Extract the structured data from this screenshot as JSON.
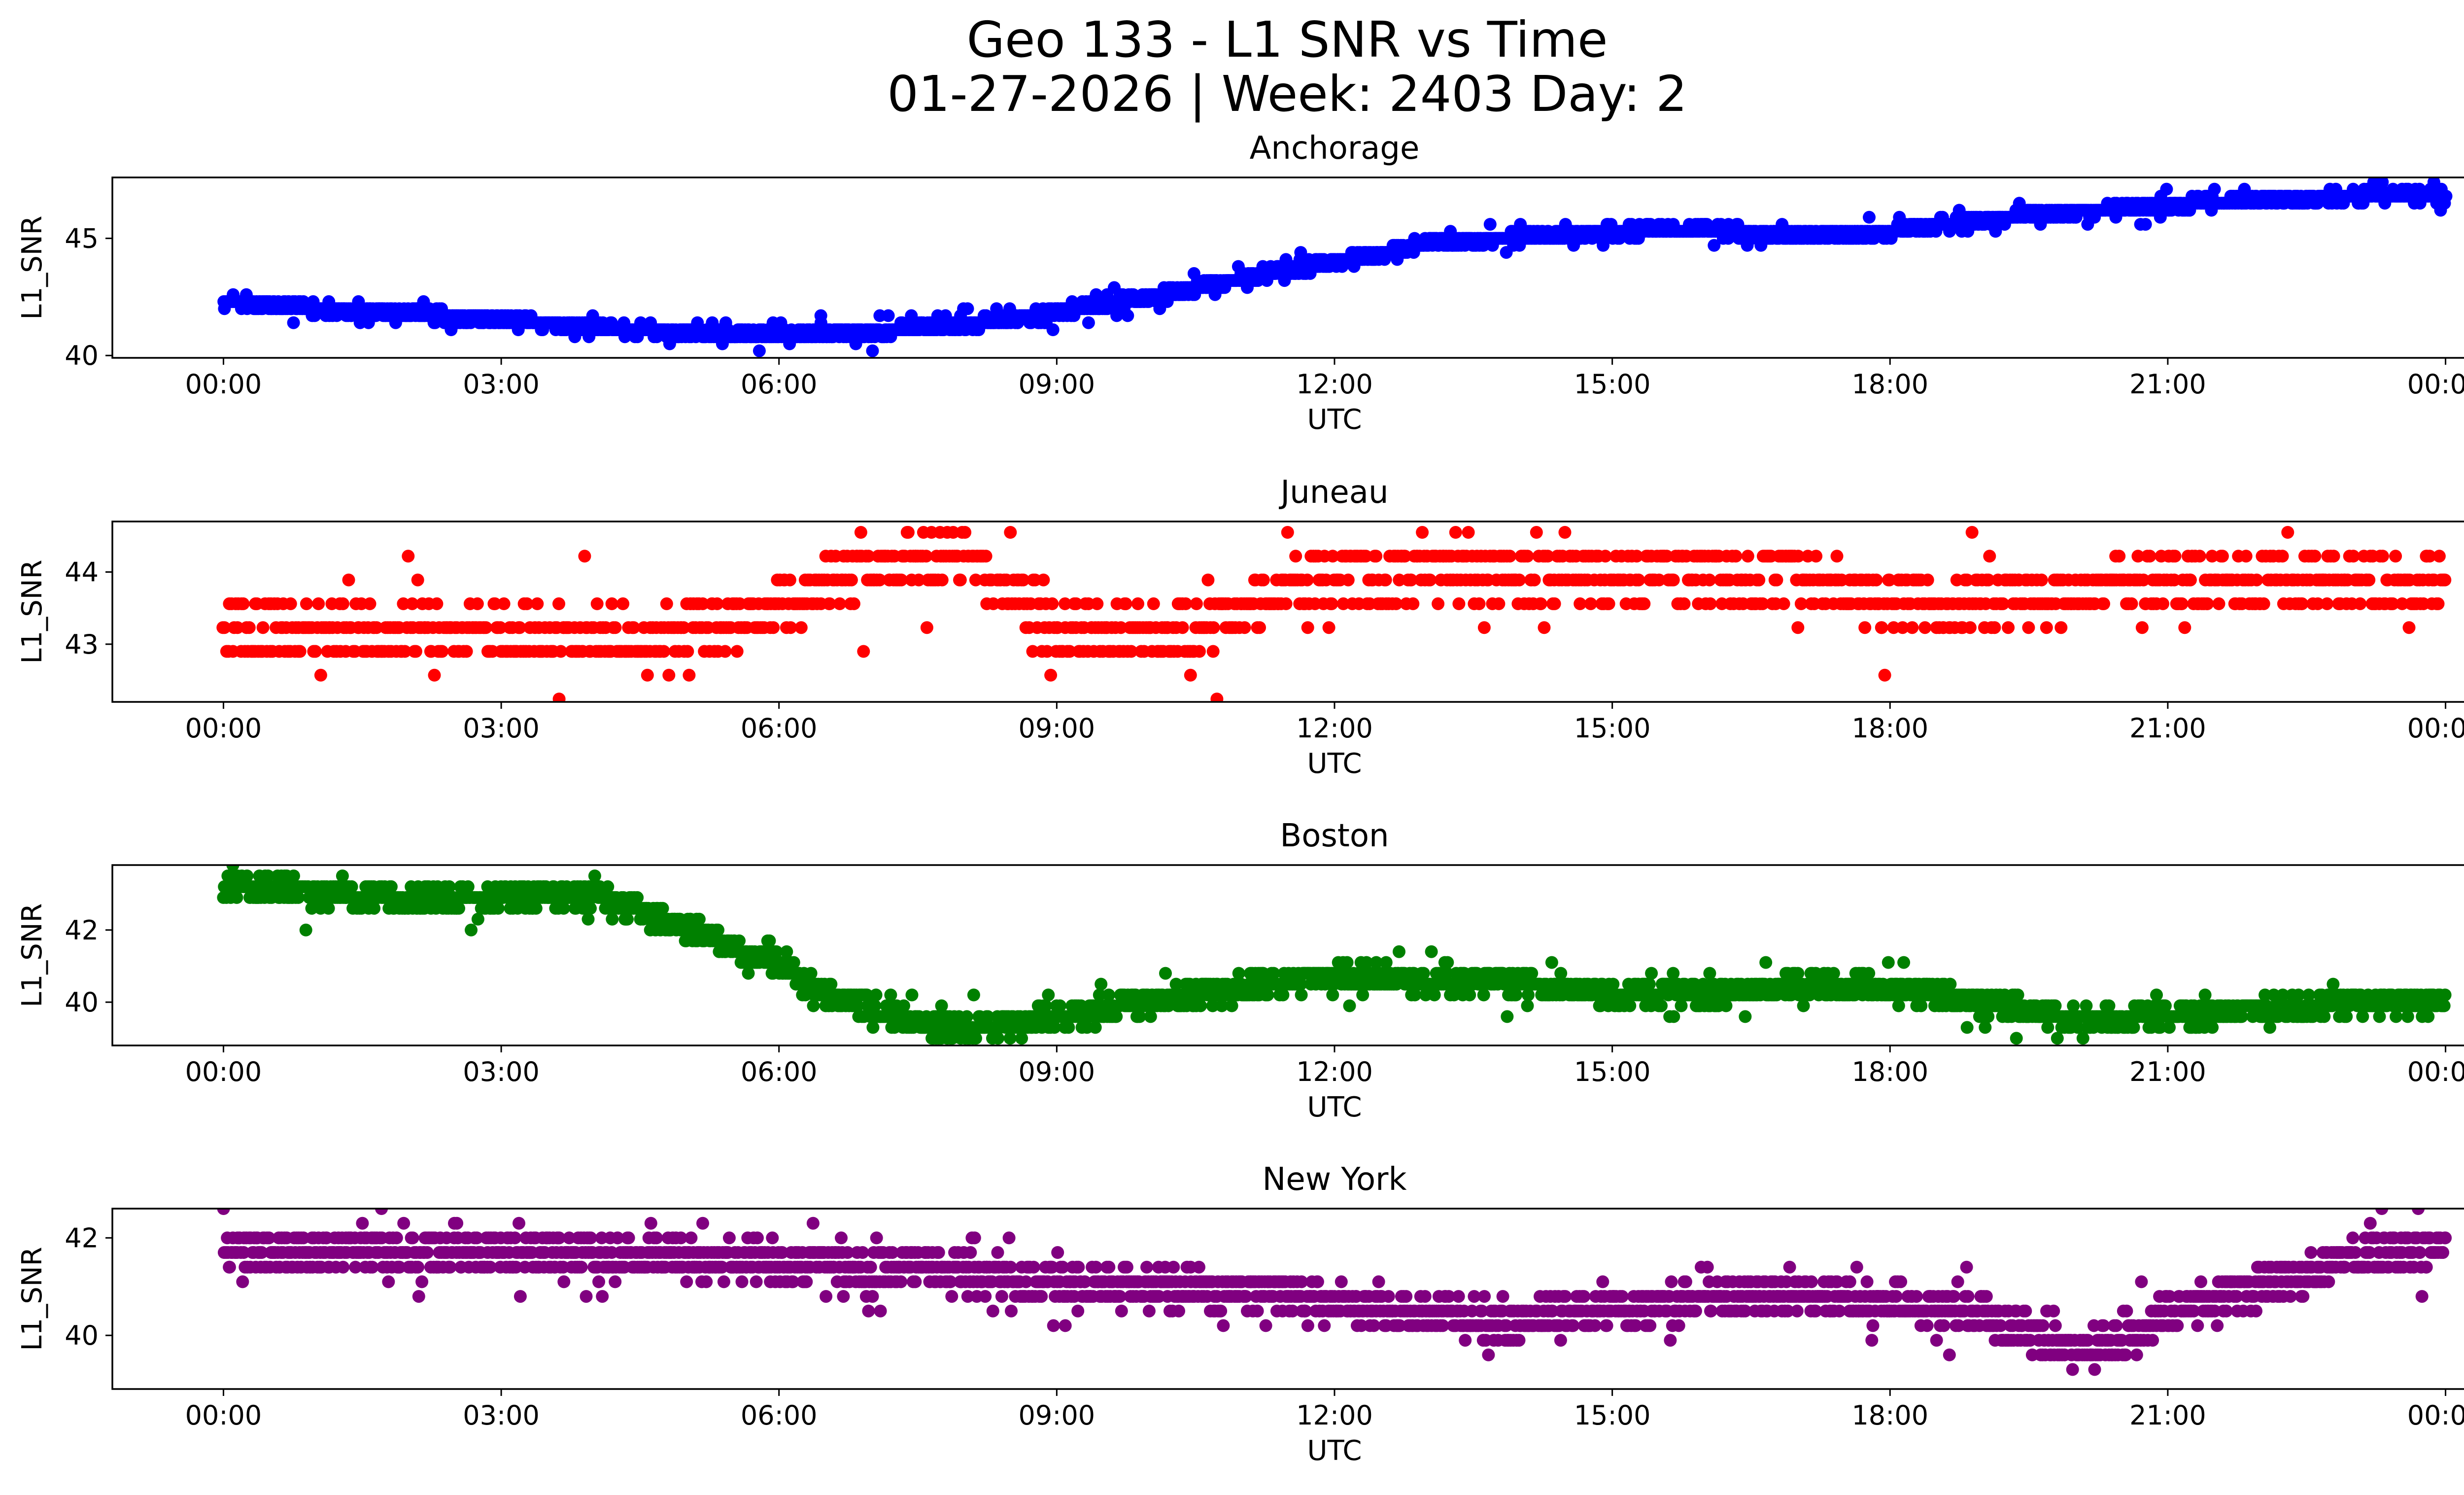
{
  "figure": {
    "title_line1": "Geo 133 - L1 SNR vs Time",
    "title_line2": "01-27-2026 | Week: 2403 Day: 2"
  },
  "chart_data": [
    {
      "type": "scatter",
      "title": "Anchorage",
      "xlabel": "UTC",
      "ylabel": "L1_SNR",
      "color": "#0000ff",
      "xlim": [
        -1.2,
        25.2
      ],
      "ylim": [
        39.9,
        47.6
      ],
      "yticks": [
        40,
        45
      ],
      "xticks": [
        0,
        3,
        6,
        9,
        12,
        15,
        18,
        21,
        24
      ],
      "xtick_labels": [
        "00:00",
        "03:00",
        "06:00",
        "09:00",
        "12:00",
        "15:00",
        "18:00",
        "21:00",
        "00:00"
      ],
      "series": [
        {
          "name": "Anchorage",
          "trend": [
            [
              0,
              42.3
            ],
            [
              1,
              42.0
            ],
            [
              2,
              41.8
            ],
            [
              3,
              41.5
            ],
            [
              4,
              41.2
            ],
            [
              5,
              41.0
            ],
            [
              6,
              40.9
            ],
            [
              7,
              41.0
            ],
            [
              8,
              41.3
            ],
            [
              9,
              41.8
            ],
            [
              10,
              42.5
            ],
            [
              11,
              43.3
            ],
            [
              12,
              44.0
            ],
            [
              13,
              44.8
            ],
            [
              14,
              45.0
            ],
            [
              15,
              45.3
            ],
            [
              16,
              45.4
            ],
            [
              17,
              45.1
            ],
            [
              18,
              45.3
            ],
            [
              19,
              45.8
            ],
            [
              20,
              46.1
            ],
            [
              21,
              46.4
            ],
            [
              22,
              46.7
            ],
            [
              23,
              46.8
            ],
            [
              24,
              46.8
            ]
          ],
          "band": [
            0.2,
            0.2
          ],
          "quant": 0.3,
          "outlier_rate": 0.06,
          "outlier_amp": 0.4,
          "density": 8
        }
      ]
    },
    {
      "type": "scatter",
      "title": "Juneau",
      "xlabel": "UTC",
      "ylabel": "L1_SNR",
      "color": "#ff0000",
      "xlim": [
        -1.2,
        25.2
      ],
      "ylim": [
        42.2,
        44.7
      ],
      "yticks": [
        43,
        44
      ],
      "xticks": [
        0,
        3,
        6,
        9,
        12,
        15,
        18,
        21,
        24
      ],
      "xtick_labels": [
        "00:00",
        "03:00",
        "06:00",
        "09:00",
        "12:00",
        "15:00",
        "18:00",
        "21:00",
        "00:00"
      ],
      "series": [
        {
          "name": "Juneau",
          "trend": [
            [
              0,
              43.2
            ],
            [
              3,
              43.1
            ],
            [
              5,
              43.1
            ],
            [
              6,
              43.5
            ],
            [
              6.5,
              43.9
            ],
            [
              7,
              44.1
            ],
            [
              8,
              44.2
            ],
            [
              8.5,
              43.8
            ],
            [
              9,
              43.2
            ],
            [
              10,
              43.1
            ],
            [
              10.5,
              43.2
            ],
            [
              11,
              43.5
            ],
            [
              11.5,
              43.7
            ],
            [
              12,
              43.95
            ],
            [
              15,
              43.95
            ],
            [
              17,
              43.9
            ],
            [
              18,
              43.6
            ],
            [
              19,
              43.6
            ],
            [
              20,
              43.7
            ],
            [
              21,
              43.9
            ],
            [
              24,
              43.9
            ]
          ],
          "band": [
            0.35,
            0.35
          ],
          "quant": 0.33,
          "outlier_rate": 0.05,
          "outlier_amp": 0.65,
          "density": 5
        }
      ]
    },
    {
      "type": "scatter",
      "title": "Boston",
      "xlabel": "UTC",
      "ylabel": "L1_SNR",
      "color": "#008000",
      "xlim": [
        -1.2,
        25.2
      ],
      "ylim": [
        38.8,
        43.8
      ],
      "yticks": [
        40,
        42
      ],
      "xticks": [
        0,
        3,
        6,
        9,
        12,
        15,
        18,
        21,
        24
      ],
      "xtick_labels": [
        "00:00",
        "03:00",
        "06:00",
        "09:00",
        "12:00",
        "15:00",
        "18:00",
        "21:00",
        "00:00"
      ],
      "series": [
        {
          "name": "Boston",
          "trend": [
            [
              0,
              43.3
            ],
            [
              0.5,
              43.2
            ],
            [
              1,
              43.0
            ],
            [
              2,
              42.8
            ],
            [
              3,
              42.9
            ],
            [
              4,
              43.0
            ],
            [
              4.5,
              42.5
            ],
            [
              5,
              42.1
            ],
            [
              5.5,
              41.5
            ],
            [
              6,
              41.0
            ],
            [
              6.5,
              40.3
            ],
            [
              7,
              39.8
            ],
            [
              7.5,
              39.4
            ],
            [
              8,
              39.2
            ],
            [
              9,
              39.6
            ],
            [
              10,
              40.0
            ],
            [
              11,
              40.4
            ],
            [
              12,
              40.7
            ],
            [
              13,
              40.6
            ],
            [
              14,
              40.5
            ],
            [
              15,
              40.2
            ],
            [
              16,
              40.2
            ],
            [
              17,
              40.5
            ],
            [
              18,
              40.4
            ],
            [
              19,
              40.0
            ],
            [
              20,
              39.5
            ],
            [
              21,
              39.6
            ],
            [
              22,
              39.8
            ],
            [
              23,
              40.0
            ],
            [
              24,
              40.0
            ]
          ],
          "band": [
            0.3,
            0.3
          ],
          "quant": 0.3,
          "outlier_rate": 0.05,
          "outlier_amp": 0.5,
          "density": 7
        }
      ]
    },
    {
      "type": "scatter",
      "title": "New York",
      "xlabel": "UTC",
      "ylabel": "L1_SNR",
      "color": "#800080",
      "xlim": [
        -1.2,
        25.2
      ],
      "ylim": [
        38.9,
        42.6
      ],
      "yticks": [
        40,
        42
      ],
      "xticks": [
        0,
        3,
        6,
        9,
        12,
        15,
        18,
        21,
        24
      ],
      "xtick_labels": [
        "00:00",
        "03:00",
        "06:00",
        "09:00",
        "12:00",
        "15:00",
        "18:00",
        "21:00",
        "00:00"
      ],
      "series": [
        {
          "name": "New York",
          "trend": [
            [
              0,
              41.7
            ],
            [
              3,
              41.7
            ],
            [
              5,
              41.6
            ],
            [
              6,
              41.5
            ],
            [
              8,
              41.3
            ],
            [
              9,
              41.1
            ],
            [
              10,
              41.0
            ],
            [
              11,
              40.9
            ],
            [
              12,
              40.7
            ],
            [
              13,
              40.4
            ],
            [
              14,
              40.3
            ],
            [
              15,
              40.5
            ],
            [
              16,
              40.7
            ],
            [
              17,
              40.8
            ],
            [
              18,
              40.7
            ],
            [
              19,
              40.5
            ],
            [
              19.5,
              40.0
            ],
            [
              20,
              39.7
            ],
            [
              20.5,
              39.8
            ],
            [
              21,
              40.5
            ],
            [
              22,
              41.0
            ],
            [
              23,
              41.6
            ],
            [
              24,
              41.8
            ]
          ],
          "band": [
            0.35,
            0.35
          ],
          "quant": 0.3,
          "outlier_rate": 0.05,
          "outlier_amp": 0.5,
          "density": 7
        }
      ]
    }
  ]
}
